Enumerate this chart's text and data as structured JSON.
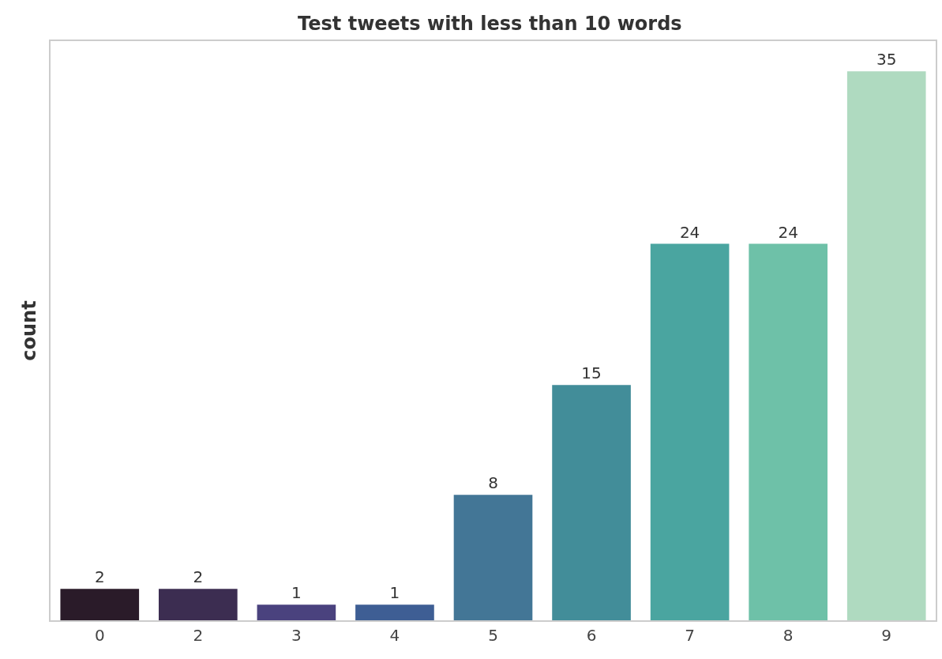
{
  "chart_data": {
    "type": "bar",
    "title": "Test tweets with less than 10 words",
    "ylabel": "count",
    "categories": [
      "0",
      "2",
      "3",
      "4",
      "5",
      "6",
      "7",
      "8",
      "9"
    ],
    "values": [
      2,
      2,
      1,
      1,
      8,
      15,
      24,
      24,
      35
    ],
    "colors": [
      "#2a1b29",
      "#3c2d51",
      "#4a427e",
      "#3e5e94",
      "#437696",
      "#428d99",
      "#4aa5a0",
      "#6ec1a8",
      "#afdac0"
    ],
    "data_labels": true,
    "tick_labels": "x"
  }
}
